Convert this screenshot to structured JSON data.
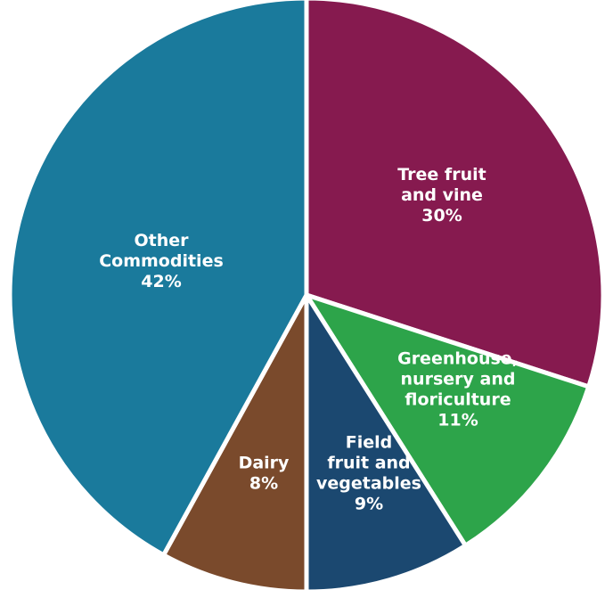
{
  "chart_data": {
    "type": "pie",
    "title": "",
    "slices": [
      {
        "label_lines": [
          "Tree fruit",
          "and vine"
        ],
        "percent_label": "30%",
        "value": 30,
        "color": "#861a4f"
      },
      {
        "label_lines": [
          "Greenhouse,",
          "nursery and",
          "floriculture"
        ],
        "percent_label": "11%",
        "value": 11,
        "color": "#2da44a"
      },
      {
        "label_lines": [
          "Field",
          "fruit and",
          "vegetables"
        ],
        "percent_label": "9%",
        "value": 9,
        "color": "#1b4870"
      },
      {
        "label_lines": [
          "Dairy"
        ],
        "percent_label": "8%",
        "value": 8,
        "color": "#7a4a2c"
      },
      {
        "label_lines": [
          "Other",
          "Commodities"
        ],
        "percent_label": "42%",
        "value": 42,
        "color": "#1a7a9c"
      }
    ],
    "start": "12 o'clock",
    "direction": "clockwise"
  }
}
